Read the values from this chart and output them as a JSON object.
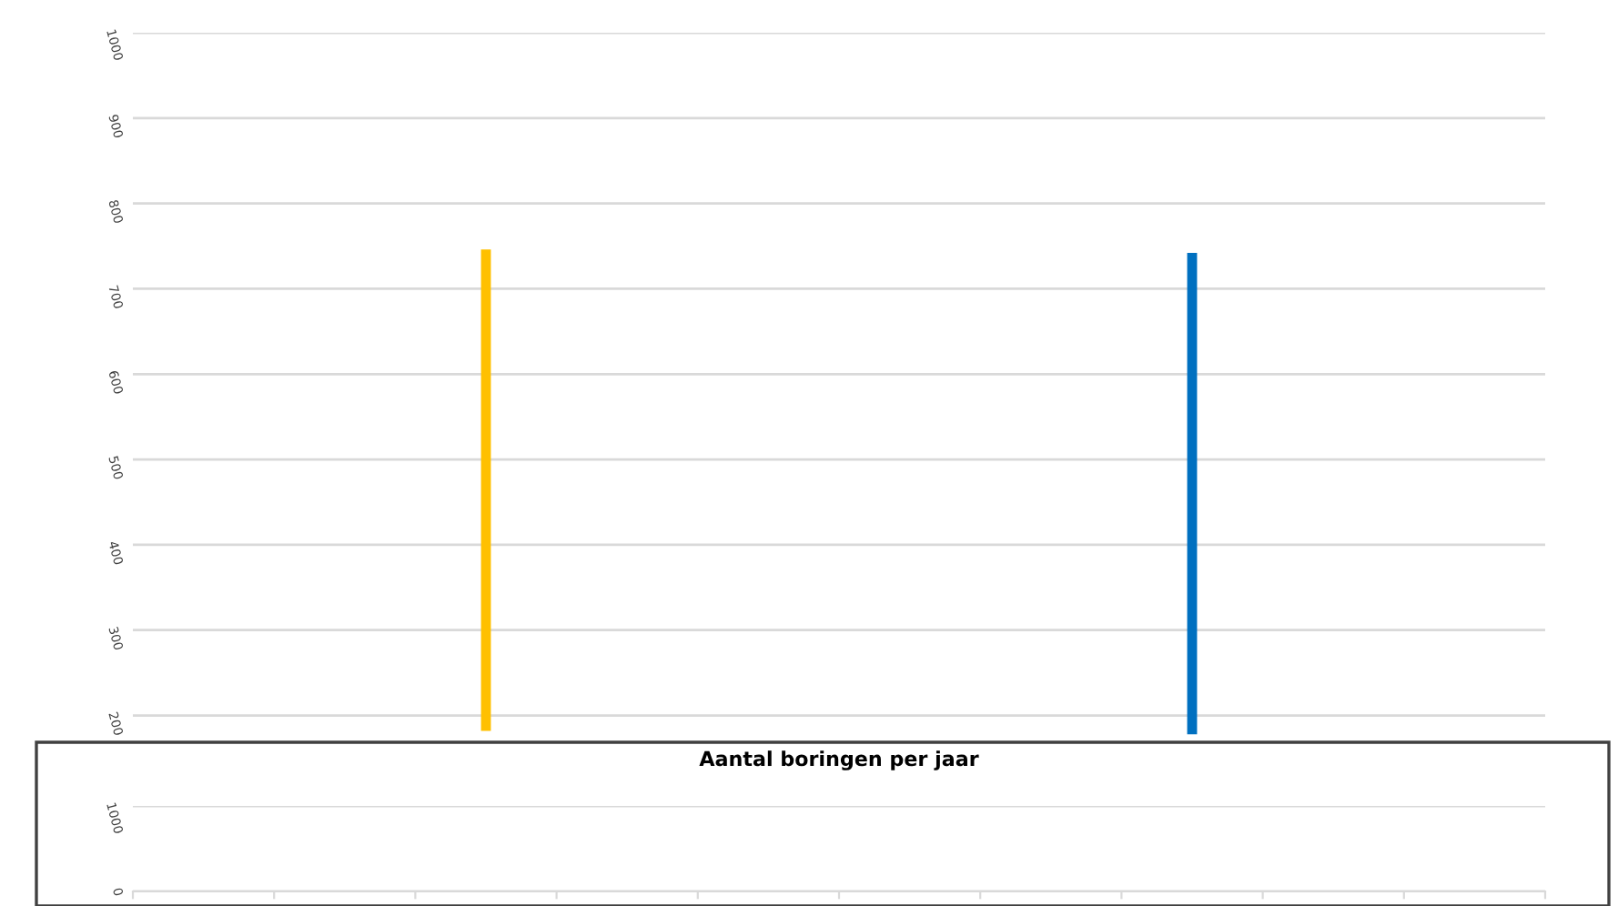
{
  "chart_data": [
    {
      "type": "bar",
      "categories": [
        null,
        null,
        null,
        null,
        null,
        null,
        null,
        null,
        null,
        null
      ],
      "series": [
        {
          "color": "#ffc000",
          "values": [
            null,
            null,
            564,
            null,
            null,
            null,
            null,
            null,
            null,
            null
          ],
          "base": [
            null,
            null,
            182,
            null,
            null,
            null,
            null,
            null,
            null,
            null
          ]
        },
        {
          "color": "#0070c0",
          "values": [
            null,
            null,
            null,
            null,
            null,
            null,
            null,
            564,
            null,
            null
          ],
          "base": [
            null,
            null,
            null,
            null,
            null,
            null,
            null,
            178,
            null,
            null
          ]
        }
      ],
      "ylim": [
        175,
        1000
      ],
      "yticks": [
        200,
        300,
        400,
        500,
        600,
        700,
        800,
        900,
        1000
      ],
      "grid": "y",
      "tick_labels": "y"
    },
    {
      "type": "line",
      "title": "Aantal boringen per jaar",
      "categories": [
        null,
        null,
        null,
        null,
        null,
        null,
        null,
        null,
        null,
        null
      ],
      "series": [
        {
          "color": "#0070c0",
          "values": [
            null,
            null,
            null,
            null,
            null,
            null,
            null,
            null,
            null,
            null
          ]
        }
      ],
      "ylim": [
        0,
        1000
      ],
      "yticks": [
        0,
        1000
      ],
      "grid": "y",
      "tick_labels": "y"
    }
  ]
}
